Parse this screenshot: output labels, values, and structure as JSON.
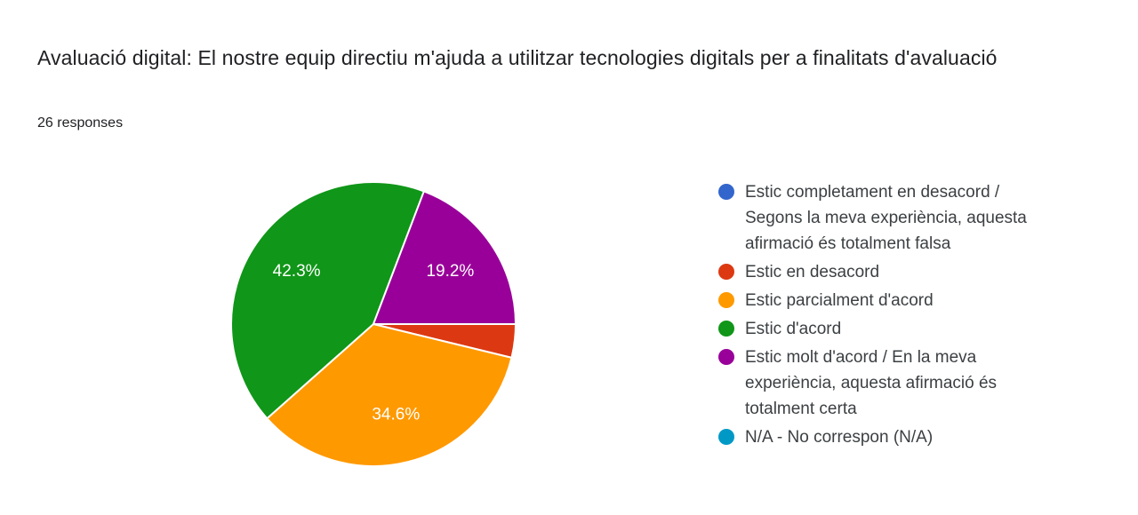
{
  "header": {
    "title": "Avaluació digital: El nostre equip directiu m'ajuda a utilitzar tecnologies digitals per a finalitats d'avaluació",
    "responses": "26 responses"
  },
  "chart_data": {
    "type": "pie",
    "title": "Avaluació digital: El nostre equip directiu m'ajuda a utilitzar tecnologies digitals per a finalitats d'avaluació",
    "subtitle": "26 responses",
    "legend_position": "right",
    "start_angle_deg": 90,
    "clockwise": true,
    "label_color": "#ffffff",
    "slice_border_color": "#ffffff",
    "slices": [
      {
        "label": "Estic completament en desacord / Segons la meva experiència, aquesta afirmació és totalment falsa",
        "color": "#3366CC",
        "pct": 0,
        "pct_label": ""
      },
      {
        "label": "Estic en desacord",
        "color": "#DC3912",
        "pct": 3.8,
        "pct_label": ""
      },
      {
        "label": "Estic parcialment d'acord",
        "color": "#FF9900",
        "pct": 34.6,
        "pct_label": "34.6%"
      },
      {
        "label": "Estic d'acord",
        "color": "#109618",
        "pct": 42.3,
        "pct_label": "42.3%"
      },
      {
        "label": "Estic molt d'acord / En la meva experiència, aquesta afirmació és totalment certa",
        "color": "#990099",
        "pct": 19.2,
        "pct_label": "19.2%"
      },
      {
        "label": "N/A - No correspon (N/A)",
        "color": "#0099C6",
        "pct": 0,
        "pct_label": ""
      }
    ]
  }
}
